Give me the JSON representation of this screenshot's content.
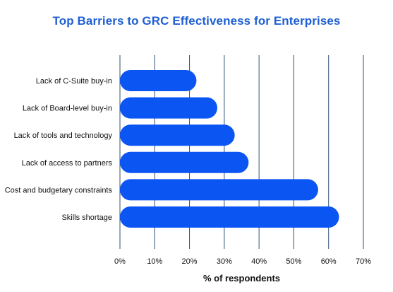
{
  "chart_data": {
    "type": "bar",
    "orientation": "horizontal",
    "title": "Top Barriers to GRC Effectiveness for Enterprises",
    "xlabel": "% of respondents",
    "ylabel": "",
    "xlim": [
      0,
      70
    ],
    "x_ticks": [
      "0%",
      "10%",
      "20%",
      "30%",
      "40%",
      "50%",
      "60%",
      "70%"
    ],
    "categories": [
      "Lack of C-Suite buy-in",
      "Lack of Board-level buy-in",
      "Lack of tools and technology",
      "Lack of access to partners",
      "Cost and budgetary constraints",
      "Skills shortage"
    ],
    "values": [
      22,
      28,
      33,
      37,
      57,
      63
    ],
    "unit": "%",
    "grid": true,
    "bar_color": "#0b55f2",
    "gridline_color": "#2f4f7a",
    "title_color": "#1f5fd3"
  }
}
